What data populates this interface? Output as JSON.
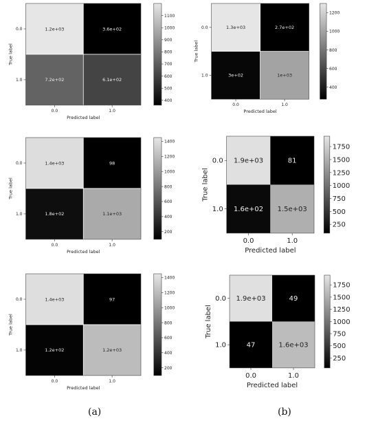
{
  "panel_labels": [
    "(a)",
    "(b)"
  ],
  "chart_data": [
    {
      "type": "heatmap",
      "title": "",
      "xlabel": "Predicted label",
      "ylabel": "True label",
      "x_ticks": [
        "0.0",
        "1.0"
      ],
      "y_ticks": [
        "0.0",
        "1.0"
      ],
      "values": [
        [
          1200,
          360
        ],
        [
          720,
          610
        ]
      ],
      "cell_labels": [
        [
          "1.2e+03",
          "3.6e+02"
        ],
        [
          "7.2e+02",
          "6.1e+02"
        ]
      ],
      "colorbar": {
        "range": [
          360,
          1200
        ],
        "ticks": [
          400,
          500,
          600,
          700,
          800,
          900,
          1000,
          1100
        ]
      },
      "colormap": [
        "#000000",
        "#ffffff"
      ],
      "grid": true
    },
    {
      "type": "heatmap",
      "title": "",
      "xlabel": "Predicted label",
      "ylabel": "True label",
      "x_ticks": [
        "0.0",
        "1.0"
      ],
      "y_ticks": [
        "0.0",
        "1.0"
      ],
      "values": [
        [
          1300,
          270
        ],
        [
          300,
          1000
        ]
      ],
      "cell_labels": [
        [
          "1.3e+03",
          "2.7e+02"
        ],
        [
          "3e+02",
          "1e+03"
        ]
      ],
      "colorbar": {
        "range": [
          270,
          1300
        ],
        "ticks": [
          400,
          600,
          800,
          1000,
          1200
        ]
      },
      "colormap": [
        "#000000",
        "#ffffff"
      ],
      "grid": true
    },
    {
      "type": "heatmap",
      "title": "",
      "xlabel": "Predicted label",
      "ylabel": "True label",
      "x_ticks": [
        "0.0",
        "1.0"
      ],
      "y_ticks": [
        "0.0",
        "1.0"
      ],
      "values": [
        [
          1400,
          98
        ],
        [
          180,
          1100
        ]
      ],
      "cell_labels": [
        [
          "1.4e+03",
          "98"
        ],
        [
          "1.8e+02",
          "1.1e+03"
        ]
      ],
      "colorbar": {
        "range": [
          98,
          1450
        ],
        "ticks": [
          200,
          400,
          600,
          800,
          1000,
          1200,
          1400
        ]
      },
      "colormap": [
        "#000000",
        "#ffffff"
      ],
      "grid": true
    },
    {
      "type": "heatmap",
      "title": "",
      "xlabel": "Predicted label",
      "ylabel": "True label",
      "x_ticks": [
        "0.0",
        "1.0"
      ],
      "y_ticks": [
        "0.0",
        "1.0"
      ],
      "values": [
        [
          1900,
          81
        ],
        [
          160,
          1500
        ]
      ],
      "cell_labels": [
        [
          "1.9e+03",
          "81"
        ],
        [
          "1.6e+02",
          "1.5e+03"
        ]
      ],
      "colorbar": {
        "range": [
          81,
          1950
        ],
        "ticks": [
          250,
          500,
          750,
          1000,
          1250,
          1500,
          1750
        ]
      },
      "colormap": [
        "#000000",
        "#ffffff"
      ],
      "grid": false
    },
    {
      "type": "heatmap",
      "title": "",
      "xlabel": "Predicted label",
      "ylabel": "True label",
      "x_ticks": [
        "0.0",
        "1.0"
      ],
      "y_ticks": [
        "0.0",
        "1.0"
      ],
      "values": [
        [
          1400,
          97
        ],
        [
          120,
          1200
        ]
      ],
      "cell_labels": [
        [
          "1.4e+03",
          "97"
        ],
        [
          "1.2e+02",
          "1.2e+03"
        ]
      ],
      "colorbar": {
        "range": [
          97,
          1450
        ],
        "ticks": [
          200,
          400,
          600,
          800,
          1000,
          1200,
          1400
        ]
      },
      "colormap": [
        "#000000",
        "#ffffff"
      ],
      "grid": true
    },
    {
      "type": "heatmap",
      "title": "",
      "xlabel": "Predicted label",
      "ylabel": "True label",
      "x_ticks": [
        "0.0",
        "1.0"
      ],
      "y_ticks": [
        "0.0",
        "1.0"
      ],
      "values": [
        [
          1900,
          49
        ],
        [
          47,
          1600
        ]
      ],
      "cell_labels": [
        [
          "1.9e+03",
          "49"
        ],
        [
          "47",
          "1.6e+03"
        ]
      ],
      "colorbar": {
        "range": [
          47,
          1950
        ],
        "ticks": [
          250,
          500,
          750,
          1000,
          1250,
          1500,
          1750
        ]
      },
      "colormap": [
        "#000000",
        "#ffffff"
      ],
      "grid": false
    }
  ]
}
